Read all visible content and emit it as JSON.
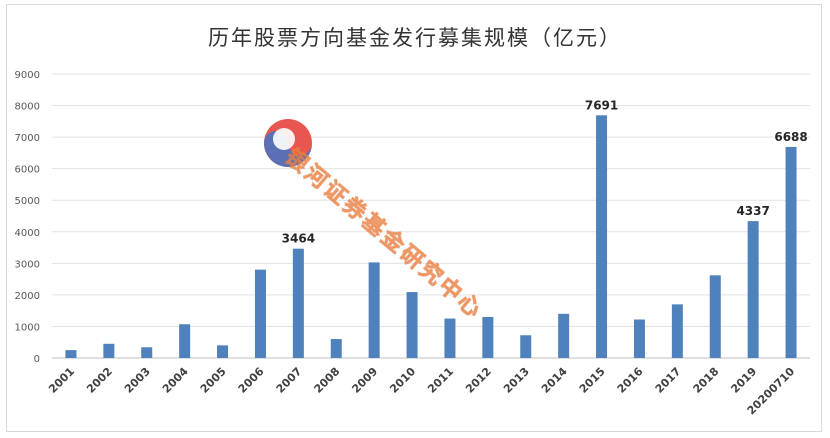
{
  "chart_data": {
    "type": "bar",
    "title": "历年股票方向基金发行募集规模（亿元）",
    "categories": [
      "2001",
      "2002",
      "2003",
      "2004",
      "2005",
      "2006",
      "2007",
      "2008",
      "2009",
      "2010",
      "2011",
      "2012",
      "2013",
      "2014",
      "2015",
      "2016",
      "2017",
      "2018",
      "2019",
      "20200710"
    ],
    "values": [
      250,
      450,
      340,
      1070,
      400,
      2800,
      3464,
      600,
      3030,
      2090,
      1250,
      1300,
      720,
      1400,
      7691,
      1220,
      1700,
      2620,
      4337,
      6688
    ],
    "data_labels": {
      "2007": "3464",
      "2015": "7691",
      "2019": "4337",
      "20200710": "6688"
    },
    "ylim": [
      0,
      9000
    ],
    "yticks": [
      0,
      1000,
      2000,
      3000,
      4000,
      5000,
      6000,
      7000,
      8000,
      9000
    ],
    "grid": true,
    "bar_color": "#4f81bd"
  },
  "watermark": {
    "text": "银河证券基金研究中心",
    "logo_colors": [
      "#e8574f",
      "#5b6fb5"
    ]
  }
}
